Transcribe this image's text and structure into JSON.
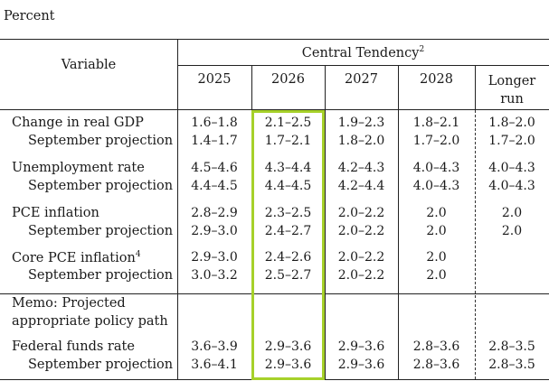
{
  "unit_label": "Percent",
  "header": {
    "variable": "Variable",
    "group": "Central Tendency",
    "group_note": "2",
    "years": [
      "2025",
      "2026",
      "2027",
      "2028"
    ],
    "longer_run": [
      "Longer",
      "run"
    ]
  },
  "rows": [
    {
      "label": "Change in real GDP",
      "values": [
        "1.6–1.8",
        "2.1–2.5",
        "1.9–2.3",
        "1.8–2.1",
        "1.8–2.0"
      ]
    },
    {
      "label": "September projection",
      "values": [
        "1.4–1.7",
        "1.7–2.1",
        "1.8–2.0",
        "1.7–2.0",
        "1.7–2.0"
      ]
    },
    {
      "label": "Unemployment rate",
      "values": [
        "4.5–4.6",
        "4.3–4.4",
        "4.2–4.3",
        "4.0–4.3",
        "4.0–4.3"
      ]
    },
    {
      "label": "September projection",
      "values": [
        "4.4–4.5",
        "4.4–4.5",
        "4.2–4.4",
        "4.0–4.3",
        "4.0–4.3"
      ]
    },
    {
      "label": "PCE inflation",
      "values": [
        "2.8–2.9",
        "2.3–2.5",
        "2.0–2.2",
        "2.0",
        "2.0"
      ]
    },
    {
      "label": "September projection",
      "values": [
        "2.9–3.0",
        "2.4–2.7",
        "2.0–2.2",
        "2.0",
        "2.0"
      ]
    },
    {
      "label": "Core PCE inflation",
      "note": "4",
      "values": [
        "2.9–3.0",
        "2.4–2.6",
        "2.0–2.2",
        "2.0",
        ""
      ]
    },
    {
      "label": "September projection",
      "values": [
        "3.0–3.2",
        "2.5–2.7",
        "2.0–2.2",
        "2.0",
        ""
      ]
    },
    {
      "label": "Federal funds rate",
      "values": [
        "3.6–3.9",
        "2.9–3.6",
        "2.9–3.6",
        "2.8–3.6",
        "2.8–3.5"
      ]
    },
    {
      "label": "September projection",
      "values": [
        "3.6–4.1",
        "2.9–3.6",
        "2.9–3.6",
        "2.8–3.6",
        "2.8–3.5"
      ]
    }
  ],
  "memo": [
    "Memo: Projected",
    "appropriate policy path"
  ]
}
